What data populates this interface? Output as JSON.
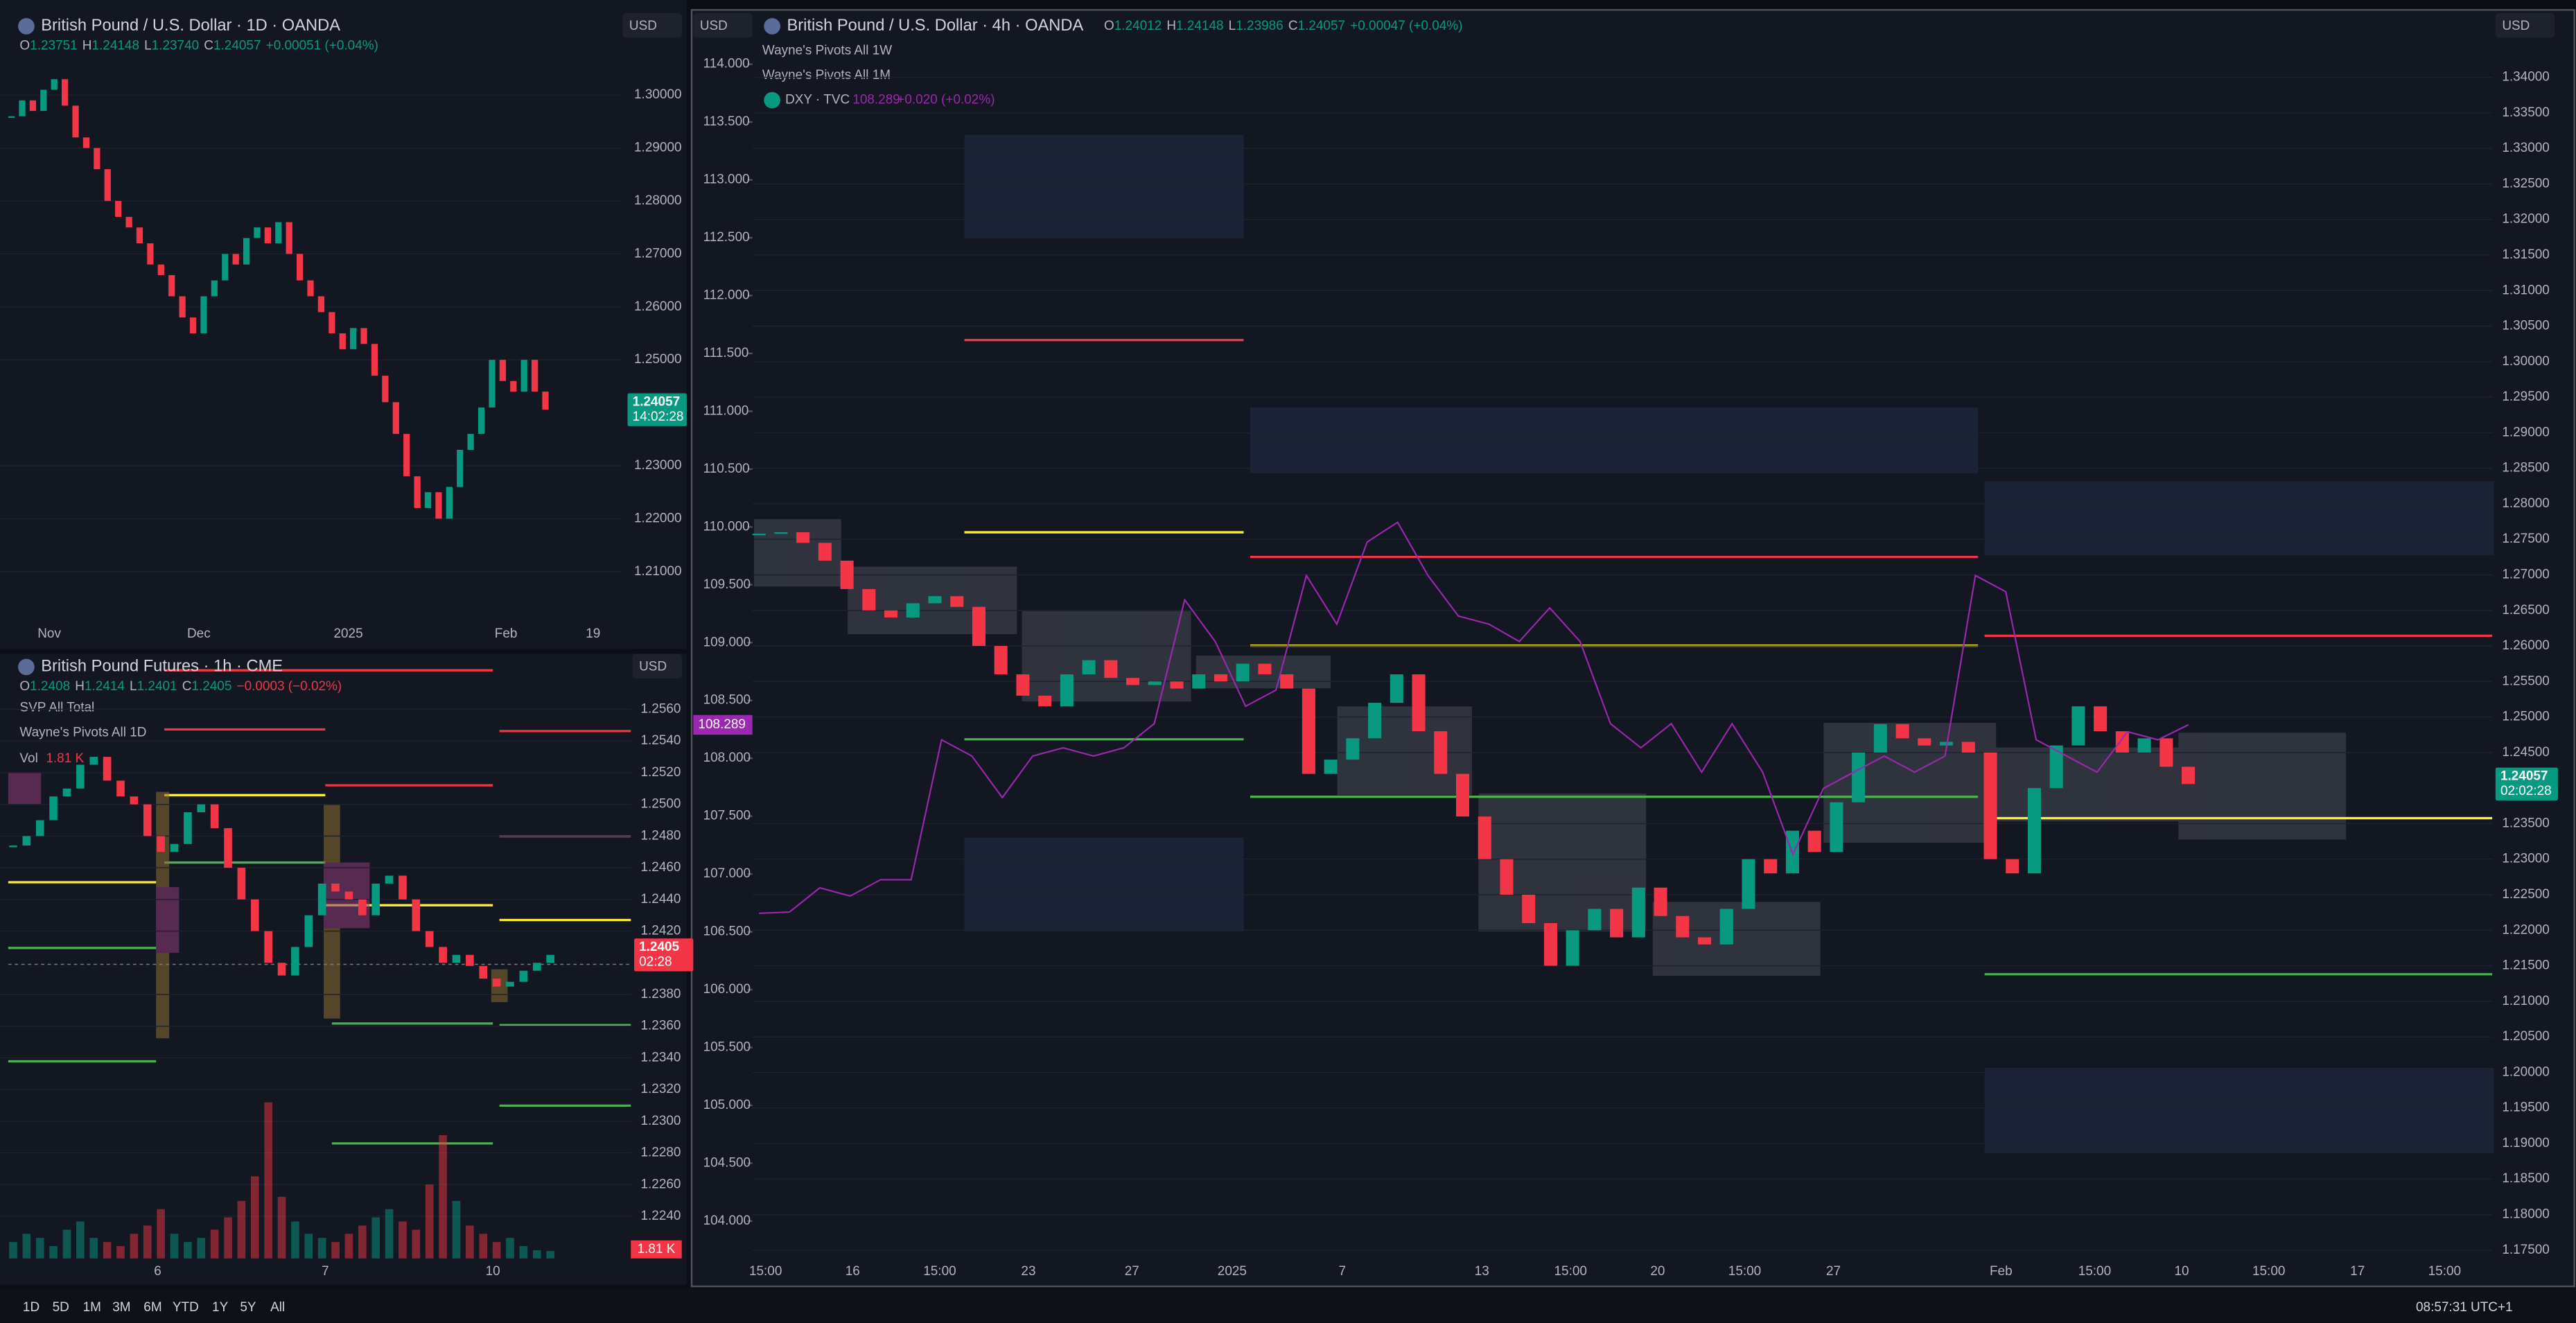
{
  "panels": [
    {
      "currency": "USD",
      "title": "British Pound / U.S. Dollar · 1D · OANDA",
      "ohlc": [
        "O",
        "1.23751",
        "H",
        "1.24148",
        "L",
        "1.23740",
        "C",
        "1.24057",
        "+0.00051 (+0.04%)"
      ],
      "ylim": [
        1.2016,
        1.3102
      ],
      "yticks": [
        {
          "value": 1.3,
          "label": "1.30000"
        },
        {
          "value": 1.29,
          "label": "1.29000"
        },
        {
          "value": 1.28,
          "label": "1.28000"
        },
        {
          "value": 1.27,
          "label": "1.27000"
        },
        {
          "value": 1.26,
          "label": "1.26000"
        },
        {
          "value": 1.25,
          "label": "1.25000"
        },
        {
          "value": 1.23,
          "label": "1.23000"
        },
        {
          "value": 1.22,
          "label": "1.22000"
        },
        {
          "value": 1.21,
          "label": "1.21000"
        }
      ],
      "x_labels": [
        "Nov",
        "Dec",
        "2025",
        "Feb",
        "19"
      ],
      "closes": [
        1.296,
        1.299,
        1.297,
        1.301,
        1.303,
        1.298,
        1.292,
        1.29,
        1.286,
        1.28,
        1.277,
        1.275,
        1.272,
        1.268,
        1.266,
        1.262,
        1.258,
        1.255,
        1.262,
        1.265,
        1.27,
        1.268,
        1.273,
        1.275,
        1.272,
        1.276,
        1.27,
        1.265,
        1.262,
        1.259,
        1.255,
        1.252,
        1.256,
        1.253,
        1.247,
        1.242,
        1.236,
        1.228,
        1.222,
        1.225,
        1.22,
        1.226,
        1.233,
        1.236,
        1.241,
        1.25,
        1.246,
        1.244,
        1.25,
        1.244,
        1.24057
      ],
      "last_price": "1.24057",
      "countdown": "14:02:28"
    },
    {
      "currency": "USD",
      "title": "British Pound Futures · 1h · CME",
      "ohlc": [
        "O",
        "1.2408",
        "H",
        "1.2414",
        "L",
        "1.2401",
        "C",
        "1.2405",
        "−0.0003 (−0.02%)"
      ],
      "indicators": [
        "SVP All Total",
        "Wayne's Pivots All 1D"
      ],
      "vol_title": "Vol",
      "vol_value": "1.81 K",
      "ylim": [
        1.223,
        1.2567
      ],
      "yticks": [
        {
          "value": 1.256,
          "label": "1.2560"
        },
        {
          "value": 1.254,
          "label": "1.2540"
        },
        {
          "value": 1.252,
          "label": "1.2520"
        },
        {
          "value": 1.25,
          "label": "1.2500"
        },
        {
          "value": 1.248,
          "label": "1.2480"
        },
        {
          "value": 1.246,
          "label": "1.2460"
        },
        {
          "value": 1.244,
          "label": "1.2440"
        },
        {
          "value": 1.242,
          "label": "1.2420"
        },
        {
          "value": 1.238,
          "label": "1.2380"
        },
        {
          "value": 1.236,
          "label": "1.2360"
        },
        {
          "value": 1.234,
          "label": "1.2340"
        },
        {
          "value": 1.232,
          "label": "1.2320"
        },
        {
          "value": 1.23,
          "label": "1.2300"
        },
        {
          "value": 1.228,
          "label": "1.2280"
        },
        {
          "value": 1.226,
          "label": "1.2260"
        },
        {
          "value": 1.224,
          "label": "1.2240"
        }
      ],
      "x_labels": [
        "6",
        "7",
        "10"
      ],
      "closes": [
        1.2474,
        1.248,
        1.249,
        1.2505,
        1.251,
        1.2525,
        1.253,
        1.2515,
        1.2505,
        1.25,
        1.248,
        1.247,
        1.2475,
        1.2495,
        1.25,
        1.2485,
        1.246,
        1.244,
        1.242,
        1.24,
        1.2392,
        1.241,
        1.243,
        1.245,
        1.2445,
        1.244,
        1.243,
        1.245,
        1.2455,
        1.244,
        1.242,
        1.241,
        1.24,
        1.2405,
        1.2398,
        1.239,
        1.2385,
        1.2388,
        1.2395,
        1.24,
        1.2405
      ],
      "volumes": [
        4,
        6,
        5,
        3,
        7,
        9,
        5,
        4,
        3,
        6,
        8,
        12,
        6,
        4,
        5,
        7,
        10,
        14,
        20,
        38,
        15,
        9,
        6,
        5,
        4,
        6,
        8,
        10,
        12,
        9,
        7,
        18,
        30,
        14,
        8,
        6,
        4,
        5,
        3,
        2,
        1.81
      ],
      "last_price": "1.2405",
      "countdown": "02:28"
    },
    {
      "currency": "USD",
      "title": "British Pound / U.S. Dollar · 4h · OANDA",
      "ohlc": [
        "O",
        "1.24012",
        "H",
        "1.24148",
        "L",
        "1.23986",
        "C",
        "1.24057",
        "+0.00047 (+0.04%)"
      ],
      "indicators": [
        "Wayne's Pivots All 1W",
        "Wayne's Pivots All 1M"
      ],
      "ylim": [
        1.1729,
        1.3451
      ],
      "yticks": [
        {
          "value": 1.34,
          "label": "1.34000"
        },
        {
          "value": 1.335,
          "label": "1.33500"
        },
        {
          "value": 1.33,
          "label": "1.33000"
        },
        {
          "value": 1.325,
          "label": "1.32500"
        },
        {
          "value": 1.32,
          "label": "1.32000"
        },
        {
          "value": 1.315,
          "label": "1.31500"
        },
        {
          "value": 1.31,
          "label": "1.31000"
        },
        {
          "value": 1.305,
          "label": "1.30500"
        },
        {
          "value": 1.3,
          "label": "1.30000"
        },
        {
          "value": 1.295,
          "label": "1.29500"
        },
        {
          "value": 1.29,
          "label": "1.29000"
        },
        {
          "value": 1.285,
          "label": "1.28500"
        },
        {
          "value": 1.28,
          "label": "1.28000"
        },
        {
          "value": 1.275,
          "label": "1.27500"
        },
        {
          "value": 1.27,
          "label": "1.27000"
        },
        {
          "value": 1.265,
          "label": "1.26500"
        },
        {
          "value": 1.26,
          "label": "1.26000"
        },
        {
          "value": 1.255,
          "label": "1.25500"
        },
        {
          "value": 1.25,
          "label": "1.25000"
        },
        {
          "value": 1.245,
          "label": "1.24500"
        },
        {
          "value": 1.235,
          "label": "1.23500"
        },
        {
          "value": 1.23,
          "label": "1.23000"
        },
        {
          "value": 1.225,
          "label": "1.22500"
        },
        {
          "value": 1.22,
          "label": "1.22000"
        },
        {
          "value": 1.215,
          "label": "1.21500"
        },
        {
          "value": 1.21,
          "label": "1.21000"
        },
        {
          "value": 1.205,
          "label": "1.20500"
        },
        {
          "value": 1.2,
          "label": "1.20000"
        },
        {
          "value": 1.195,
          "label": "1.19500"
        },
        {
          "value": 1.19,
          "label": "1.19000"
        },
        {
          "value": 1.185,
          "label": "1.18500"
        },
        {
          "value": 1.18,
          "label": "1.18000"
        },
        {
          "value": 1.175,
          "label": "1.17500"
        }
      ],
      "x_labels": [
        "15:00",
        "16",
        "15:00",
        "23",
        "27",
        "2025",
        "7",
        "13",
        "15:00",
        "20",
        "15:00",
        "27",
        "Feb",
        "15:00",
        "10",
        "15:00",
        "17",
        "15:00"
      ],
      "closes": [
        1.2758,
        1.276,
        1.2745,
        1.272,
        1.268,
        1.265,
        1.264,
        1.266,
        1.267,
        1.2655,
        1.26,
        1.256,
        1.253,
        1.2515,
        1.256,
        1.258,
        1.2555,
        1.2545,
        1.255,
        1.254,
        1.256,
        1.255,
        1.2575,
        1.256,
        1.254,
        1.242,
        1.244,
        1.247,
        1.252,
        1.256,
        1.248,
        1.242,
        1.236,
        1.23,
        1.225,
        1.221,
        1.215,
        1.22,
        1.223,
        1.219,
        1.226,
        1.222,
        1.219,
        1.218,
        1.223,
        1.23,
        1.228,
        1.234,
        1.231,
        1.238,
        1.245,
        1.249,
        1.247,
        1.246,
        1.2465,
        1.245,
        1.23,
        1.228,
        1.24,
        1.246,
        1.2515,
        1.248,
        1.245,
        1.247,
        1.243,
        1.24057
      ],
      "last_price": "1.24057",
      "countdown": "02:02:28",
      "dxy": {
        "name": "DXY · TVC",
        "quote": "108.289",
        "change": "+0.020 (+0.02%)",
        "color": "#9c27b0",
        "y2lim": [
          103.62,
          114.2
        ],
        "y2ticks": [
          {
            "value": 114,
            "label": "114.000"
          },
          {
            "value": 113.5,
            "label": "113.500"
          },
          {
            "value": 113,
            "label": "113.000"
          },
          {
            "value": 112.5,
            "label": "112.500"
          },
          {
            "value": 112,
            "label": "112.000"
          },
          {
            "value": 111.5,
            "label": "111.500"
          },
          {
            "value": 111,
            "label": "111.000"
          },
          {
            "value": 110.5,
            "label": "110.500"
          },
          {
            "value": 110,
            "label": "110.000"
          },
          {
            "value": 109.5,
            "label": "109.500"
          },
          {
            "value": 109,
            "label": "109.000"
          },
          {
            "value": 108.5,
            "label": "108.500"
          },
          {
            "value": 108,
            "label": "108.000"
          },
          {
            "value": 107.5,
            "label": "107.500"
          },
          {
            "value": 107,
            "label": "107.000"
          },
          {
            "value": 106.5,
            "label": "106.500"
          },
          {
            "value": 106,
            "label": "106.000"
          },
          {
            "value": 105.5,
            "label": "105.500"
          },
          {
            "value": 105,
            "label": "105.000"
          },
          {
            "value": 104.5,
            "label": "104.500"
          },
          {
            "value": 104,
            "label": "104.000"
          }
        ],
        "values": [
          106.66,
          106.67,
          106.88,
          106.81,
          106.95,
          106.95,
          108.16,
          108.02,
          107.66,
          108.02,
          108.09,
          108.02,
          108.09,
          108.3,
          109.37,
          109.01,
          108.45,
          108.59,
          109.58,
          109.16,
          109.87,
          110.04,
          109.58,
          109.23,
          109.16,
          109.01,
          109.3,
          109.01,
          108.3,
          108.09,
          108.3,
          107.88,
          108.3,
          107.88,
          107.17,
          107.74,
          107.88,
          108.02,
          107.88,
          108.02,
          109.58,
          109.44,
          108.16,
          108.02,
          107.88,
          108.23,
          108.16,
          108.289
        ]
      }
    }
  ],
  "toolbar": {
    "ranges": [
      "1D",
      "5D",
      "1M",
      "3M",
      "6M",
      "YTD",
      "1Y",
      "5Y",
      "All"
    ],
    "clock": "08:57:31 UTC+1"
  }
}
